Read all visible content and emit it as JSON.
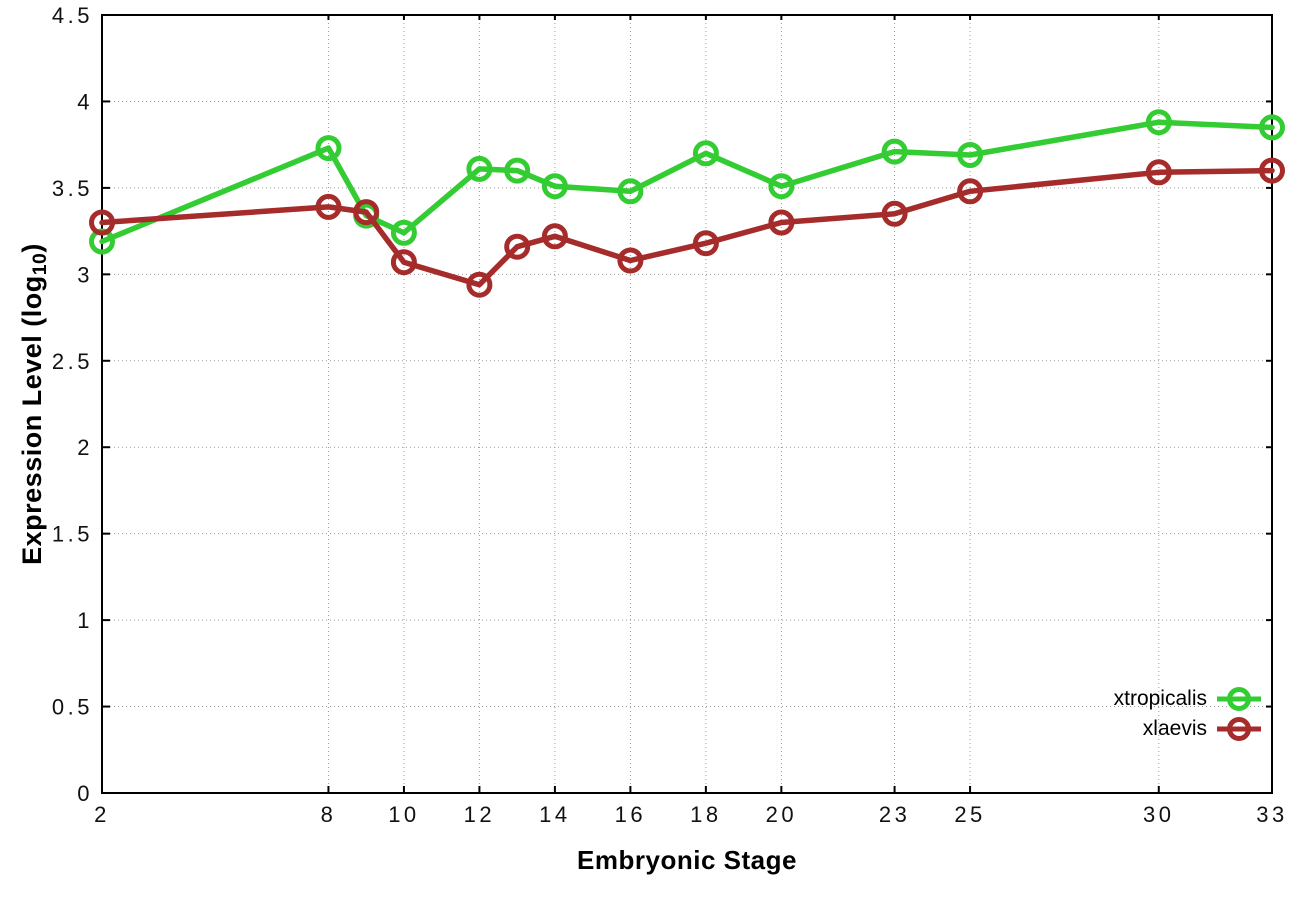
{
  "chart_data": {
    "type": "line",
    "title": "",
    "xlabel": "Embryonic Stage",
    "ylabel": {
      "text": "Expression Level (log",
      "sub": "10",
      "suffix": ")"
    },
    "xlim": [
      2,
      33
    ],
    "ylim": [
      0,
      4.5
    ],
    "grid": true,
    "legend_position": "bottom-right",
    "x": [
      2,
      8,
      9,
      10,
      12,
      13,
      14,
      16,
      18,
      20,
      23,
      25,
      30,
      33
    ],
    "xticks": {
      "values": [
        2,
        8,
        10,
        12,
        14,
        16,
        18,
        20,
        23,
        25,
        30,
        33
      ],
      "labels": [
        "2",
        "8",
        "10",
        "12",
        "14",
        "16",
        "18",
        "20",
        "23",
        "25",
        "30",
        "33"
      ]
    },
    "yticks": {
      "values": [
        0,
        0.5,
        1,
        1.5,
        2,
        2.5,
        3,
        3.5,
        4,
        4.5
      ],
      "labels": [
        "0",
        "0.5",
        "1",
        "1.5",
        "2",
        "2.5",
        "3",
        "3.5",
        "4",
        "4.5"
      ]
    },
    "series": [
      {
        "name": "xtropicalis",
        "color": "#33cc33",
        "marker": "open-circle",
        "values": [
          3.19,
          3.73,
          3.34,
          3.24,
          3.61,
          3.6,
          3.51,
          3.48,
          3.7,
          3.51,
          3.71,
          3.69,
          3.88,
          3.85
        ]
      },
      {
        "name": "xlaevis",
        "color": "#a62b2b",
        "marker": "open-circle",
        "values": [
          3.3,
          3.39,
          3.36,
          3.07,
          2.94,
          3.16,
          3.22,
          3.08,
          3.18,
          3.3,
          3.35,
          3.48,
          3.59,
          3.6
        ]
      }
    ]
  },
  "colors": {
    "grid": "#9a9a9a",
    "axis": "#000000",
    "tick_text": "#111111",
    "background": "#ffffff"
  }
}
